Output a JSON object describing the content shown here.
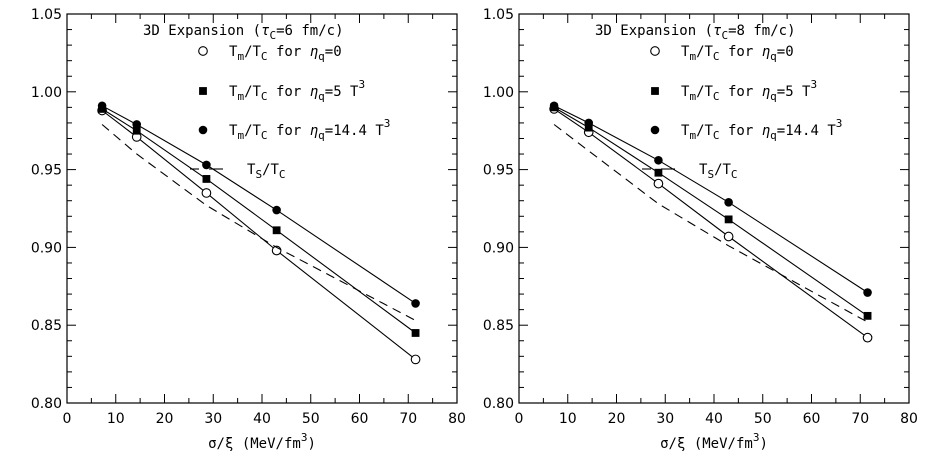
{
  "chart_data": [
    {
      "type": "line",
      "title": "3D Expansion (τ_C=6 fm/c)",
      "title_parts": {
        "main": "3D Expansion (",
        "tau": "τ",
        "sub": "C",
        "rest": "=6 fm/c)"
      },
      "xlabel": {
        "main": "σ/ξ (MeV/fm",
        "sup": "3",
        "close": ")"
      },
      "xlim": [
        0,
        80
      ],
      "ylim": [
        0.8,
        1.05
      ],
      "xticks": [
        "0",
        "10",
        "20",
        "30",
        "40",
        "50",
        "60",
        "70",
        "80"
      ],
      "yticks": [
        "0.80",
        "0.85",
        "0.90",
        "0.95",
        "1.00",
        "1.05"
      ],
      "legend_position": "top-right",
      "series": [
        {
          "key": "eta0",
          "marker": "open-circle",
          "style": "solid",
          "label": {
            "a": "T",
            "a_sub": "m",
            "b": "/T",
            "b_sub": "C",
            "c": " for η",
            "c_sub": "q",
            "d": "=0",
            "d_sup": ""
          },
          "x": [
            7.2,
            14.3,
            28.6,
            43,
            71.5
          ],
          "y": [
            0.988,
            0.971,
            0.935,
            0.898,
            0.828
          ]
        },
        {
          "key": "eta5",
          "marker": "filled-square",
          "style": "solid",
          "label": {
            "a": "T",
            "a_sub": "m",
            "b": "/T",
            "b_sub": "C",
            "c": " for η",
            "c_sub": "q",
            "d": "=5 T",
            "d_sup": "3"
          },
          "x": [
            7.2,
            14.3,
            28.6,
            43,
            71.5
          ],
          "y": [
            0.989,
            0.975,
            0.944,
            0.911,
            0.845
          ]
        },
        {
          "key": "eta14",
          "marker": "filled-circle",
          "style": "solid",
          "label": {
            "a": "T",
            "a_sub": "m",
            "b": "/T",
            "b_sub": "C",
            "c": " for η",
            "c_sub": "q",
            "d": "=14.4 T",
            "d_sup": "3"
          },
          "x": [
            7.2,
            14.3,
            28.6,
            43,
            71.5
          ],
          "y": [
            0.991,
            0.979,
            0.953,
            0.924,
            0.864
          ]
        },
        {
          "key": "ts",
          "marker": "none",
          "style": "dashed",
          "label": {
            "a": "T",
            "a_sub": "S",
            "b": "/T",
            "b_sub": "C",
            "c": "",
            "c_sub": "",
            "d": "",
            "d_sup": ""
          },
          "x": [
            7.2,
            14.3,
            28.6,
            43,
            71.5
          ],
          "y": [
            0.979,
            0.96,
            0.927,
            0.9,
            0.853
          ]
        }
      ]
    },
    {
      "type": "line",
      "title": "3D Expansion (τ_C=8 fm/c)",
      "title_parts": {
        "main": "3D Expansion (",
        "tau": "τ",
        "sub": "C",
        "rest": "=8 fm/c)"
      },
      "xlabel": {
        "main": "σ/ξ (MeV/fm",
        "sup": "3",
        "close": ")"
      },
      "xlim": [
        0,
        80
      ],
      "ylim": [
        0.8,
        1.05
      ],
      "xticks": [
        "0",
        "10",
        "20",
        "30",
        "40",
        "50",
        "60",
        "70",
        "80"
      ],
      "yticks": [
        "0.80",
        "0.85",
        "0.90",
        "0.95",
        "1.00",
        "1.05"
      ],
      "legend_position": "top-right",
      "series": [
        {
          "key": "eta0",
          "marker": "open-circle",
          "style": "solid",
          "label": {
            "a": "T",
            "a_sub": "m",
            "b": "/T",
            "b_sub": "C",
            "c": " for η",
            "c_sub": "q",
            "d": "=0",
            "d_sup": ""
          },
          "x": [
            7.2,
            14.3,
            28.6,
            43,
            71.5
          ],
          "y": [
            0.989,
            0.974,
            0.941,
            0.907,
            0.842
          ]
        },
        {
          "key": "eta5",
          "marker": "filled-square",
          "style": "solid",
          "label": {
            "a": "T",
            "a_sub": "m",
            "b": "/T",
            "b_sub": "C",
            "c": " for η",
            "c_sub": "q",
            "d": "=5 T",
            "d_sup": "3"
          },
          "x": [
            7.2,
            14.3,
            28.6,
            43,
            71.5
          ],
          "y": [
            0.99,
            0.977,
            0.948,
            0.918,
            0.856
          ]
        },
        {
          "key": "eta14",
          "marker": "filled-circle",
          "style": "solid",
          "label": {
            "a": "T",
            "a_sub": "m",
            "b": "/T",
            "b_sub": "C",
            "c": " for η",
            "c_sub": "q",
            "d": "=14.4 T",
            "d_sup": "3"
          },
          "x": [
            7.2,
            14.3,
            28.6,
            43,
            71.5
          ],
          "y": [
            0.991,
            0.98,
            0.956,
            0.929,
            0.871
          ]
        },
        {
          "key": "ts",
          "marker": "none",
          "style": "dashed",
          "label": {
            "a": "T",
            "a_sub": "S",
            "b": "/T",
            "b_sub": "C",
            "c": "",
            "c_sub": "",
            "d": "",
            "d_sup": ""
          },
          "x": [
            7.2,
            14.3,
            28.6,
            43,
            71.5
          ],
          "y": [
            0.979,
            0.962,
            0.928,
            0.901,
            0.852
          ]
        }
      ]
    }
  ]
}
